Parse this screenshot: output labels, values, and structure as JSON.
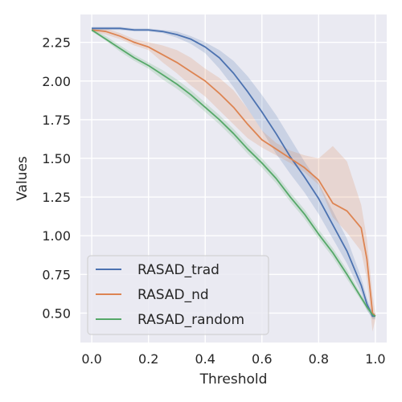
{
  "chart_data": {
    "type": "line",
    "title": "",
    "xlabel": "Threshold",
    "ylabel": "Values",
    "xlim": [
      -0.04,
      1.04
    ],
    "ylim": [
      0.31,
      2.43
    ],
    "x_ticks": [
      "0.0",
      "0.2",
      "0.4",
      "0.6",
      "0.8",
      "1.0"
    ],
    "y_ticks": [
      "0.50",
      "0.75",
      "1.00",
      "1.25",
      "1.50",
      "1.75",
      "2.00",
      "2.25"
    ],
    "grid": true,
    "legend": {
      "position": "bottom-left",
      "entries": [
        "RASAD_trad",
        "RASAD_nd",
        "RASAD_random"
      ]
    },
    "x": [
      0.0,
      0.05,
      0.1,
      0.15,
      0.2,
      0.25,
      0.3,
      0.35,
      0.4,
      0.45,
      0.5,
      0.55,
      0.6,
      0.65,
      0.7,
      0.75,
      0.8,
      0.85,
      0.9,
      0.95,
      0.97,
      0.99,
      1.0
    ],
    "series": [
      {
        "name": "RASAD_trad",
        "color": "#4c72b0",
        "values": [
          2.34,
          2.34,
          2.34,
          2.33,
          2.33,
          2.32,
          2.3,
          2.27,
          2.22,
          2.15,
          2.05,
          1.93,
          1.8,
          1.66,
          1.51,
          1.38,
          1.24,
          1.07,
          0.9,
          0.68,
          0.56,
          0.48,
          0.48
        ],
        "lower": [
          2.32,
          2.33,
          2.33,
          2.32,
          2.32,
          2.31,
          2.28,
          2.24,
          2.18,
          2.08,
          1.96,
          1.82,
          1.68,
          1.53,
          1.4,
          1.28,
          1.14,
          0.98,
          0.82,
          0.63,
          0.52,
          0.46,
          0.46
        ],
        "upper": [
          2.35,
          2.35,
          2.35,
          2.34,
          2.34,
          2.33,
          2.32,
          2.29,
          2.25,
          2.2,
          2.13,
          2.03,
          1.91,
          1.78,
          1.63,
          1.48,
          1.34,
          1.16,
          0.98,
          0.73,
          0.6,
          0.5,
          0.5
        ]
      },
      {
        "name": "RASAD_nd",
        "color": "#dd8452",
        "values": [
          2.33,
          2.32,
          2.29,
          2.25,
          2.22,
          2.17,
          2.12,
          2.06,
          2.0,
          1.92,
          1.83,
          1.72,
          1.62,
          1.56,
          1.5,
          1.44,
          1.36,
          1.21,
          1.16,
          1.05,
          0.85,
          0.5,
          0.48
        ],
        "lower": [
          2.32,
          2.3,
          2.27,
          2.23,
          2.2,
          2.12,
          2.05,
          1.97,
          1.9,
          1.81,
          1.72,
          1.63,
          1.57,
          1.52,
          1.47,
          1.41,
          1.33,
          1.12,
          1.02,
          0.9,
          0.72,
          0.38,
          0.46
        ],
        "upper": [
          2.34,
          2.34,
          2.31,
          2.27,
          2.25,
          2.23,
          2.2,
          2.15,
          2.08,
          2.02,
          1.94,
          1.82,
          1.68,
          1.6,
          1.55,
          1.52,
          1.5,
          1.58,
          1.48,
          1.2,
          0.98,
          0.62,
          0.5
        ]
      },
      {
        "name": "RASAD_random",
        "color": "#55a868",
        "values": [
          2.33,
          2.27,
          2.21,
          2.15,
          2.1,
          2.04,
          1.98,
          1.91,
          1.83,
          1.75,
          1.66,
          1.56,
          1.47,
          1.37,
          1.25,
          1.14,
          1.01,
          0.89,
          0.75,
          0.6,
          0.54,
          0.49,
          0.48
        ],
        "lower": [
          2.32,
          2.26,
          2.19,
          2.13,
          2.08,
          2.01,
          1.95,
          1.88,
          1.8,
          1.72,
          1.63,
          1.53,
          1.44,
          1.34,
          1.22,
          1.11,
          0.98,
          0.86,
          0.72,
          0.58,
          0.52,
          0.47,
          0.47
        ],
        "upper": [
          2.34,
          2.29,
          2.23,
          2.17,
          2.12,
          2.07,
          2.01,
          1.94,
          1.86,
          1.78,
          1.69,
          1.59,
          1.5,
          1.4,
          1.28,
          1.17,
          1.04,
          0.92,
          0.78,
          0.62,
          0.56,
          0.51,
          0.49
        ]
      }
    ]
  }
}
